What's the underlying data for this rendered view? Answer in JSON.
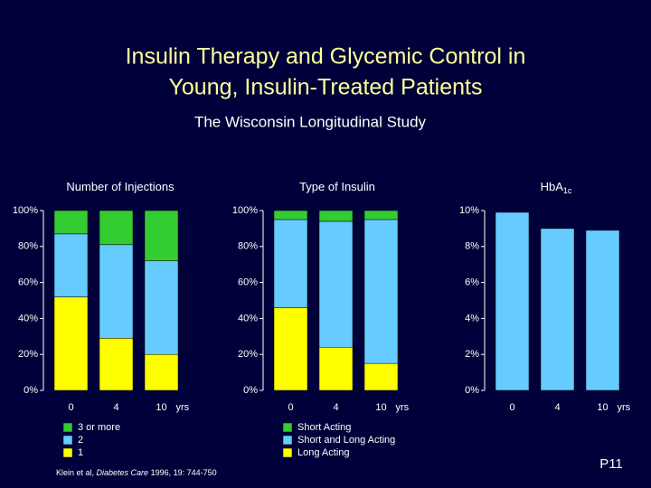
{
  "title_lines": [
    "Insulin Therapy and Glycemic Control in",
    "Young, Insulin-Treated Patients"
  ],
  "subtitle": "The Wisconsin Longitudinal Study",
  "footnote": [
    "Klein et al, ",
    "Diabetes Care",
    " 1996, 19: 744-750"
  ],
  "page_label": "P11",
  "chart_data": [
    {
      "type": "bar",
      "stacked": true,
      "title": "Number of Injections",
      "xlabel": "yrs",
      "categories": [
        "0",
        "4",
        "10"
      ],
      "series": [
        {
          "name": "1",
          "color": "#ffff00",
          "values": [
            52,
            29,
            20
          ]
        },
        {
          "name": "2",
          "color": "#66ccff",
          "values": [
            35,
            52,
            52
          ]
        },
        {
          "name": "3 or more",
          "color": "#33cc33",
          "values": [
            13,
            19,
            28
          ]
        }
      ],
      "ylim": [
        0,
        100
      ],
      "yticks": [
        {
          "value": 0,
          "label": "0%"
        },
        {
          "value": 20,
          "label": "20%"
        },
        {
          "value": 40,
          "label": "40%"
        },
        {
          "value": 60,
          "label": "60%"
        },
        {
          "value": 80,
          "label": "80%"
        },
        {
          "value": 100,
          "label": "100%"
        }
      ]
    },
    {
      "type": "bar",
      "stacked": true,
      "title": "Type of Insulin",
      "xlabel": "yrs",
      "categories": [
        "0",
        "4",
        "10"
      ],
      "series": [
        {
          "name": "Long Acting",
          "color": "#ffff00",
          "values": [
            46,
            24,
            15
          ]
        },
        {
          "name": "Short and Long Acting",
          "color": "#66ccff",
          "values": [
            49,
            70,
            80
          ]
        },
        {
          "name": "Short Acting",
          "color": "#33cc33",
          "values": [
            5,
            6,
            5
          ]
        }
      ],
      "ylim": [
        0,
        100
      ],
      "yticks": [
        {
          "value": 0,
          "label": "0%"
        },
        {
          "value": 20,
          "label": "20%"
        },
        {
          "value": 40,
          "label": "40%"
        },
        {
          "value": 60,
          "label": "60%"
        },
        {
          "value": 80,
          "label": "80%"
        },
        {
          "value": 100,
          "label": "100%"
        }
      ]
    },
    {
      "type": "bar",
      "stacked": false,
      "title": "HbA",
      "title_sub": "1c",
      "xlabel": "yrs",
      "categories": [
        "0",
        "4",
        "10"
      ],
      "values": [
        9.9,
        9.0,
        8.9
      ],
      "color": "#66ccff",
      "ylim": [
        0,
        10
      ],
      "yticks": [
        {
          "value": 0,
          "label": "0%"
        },
        {
          "value": 2,
          "label": "2%"
        },
        {
          "value": 4,
          "label": "4%"
        },
        {
          "value": 6,
          "label": "6%"
        },
        {
          "value": 8,
          "label": "8%"
        },
        {
          "value": 10,
          "label": "10%"
        }
      ]
    }
  ]
}
